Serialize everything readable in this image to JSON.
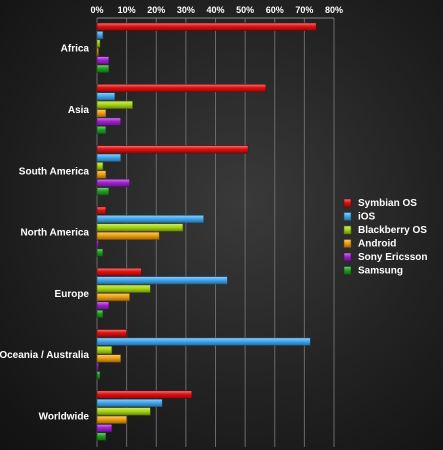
{
  "chart_data": {
    "type": "bar",
    "orientation": "horizontal",
    "title": "",
    "xlabel": "",
    "ylabel": "",
    "xlim": [
      0,
      80
    ],
    "x_ticks": [
      "0%",
      "10%",
      "20%",
      "30%",
      "40%",
      "50%",
      "60%",
      "70%",
      "80%"
    ],
    "grid": true,
    "legend_position": "right",
    "categories": [
      "Africa",
      "Asia",
      "South America",
      "North America",
      "Europe",
      "Oceania / Australia",
      "Worldwide"
    ],
    "series": [
      {
        "name": "Symbian OS",
        "color": "#e01010",
        "values": [
          74,
          57,
          51,
          3,
          15,
          10,
          32
        ]
      },
      {
        "name": "iOS",
        "color": "#40a8f0",
        "values": [
          2,
          6,
          8,
          36,
          44,
          72,
          22
        ]
      },
      {
        "name": "Blackberry OS",
        "color": "#a8d810",
        "values": [
          1,
          12,
          2,
          29,
          18,
          5,
          18
        ]
      },
      {
        "name": "Android",
        "color": "#f0a010",
        "values": [
          0.5,
          3,
          3,
          21,
          11,
          8,
          10
        ]
      },
      {
        "name": "Sony Ericsson",
        "color": "#a020d0",
        "values": [
          4,
          8,
          11,
          0.5,
          4,
          0.5,
          5
        ]
      },
      {
        "name": "Samsung",
        "color": "#20a020",
        "values": [
          4,
          3,
          4,
          2,
          2,
          1,
          3
        ]
      }
    ]
  }
}
